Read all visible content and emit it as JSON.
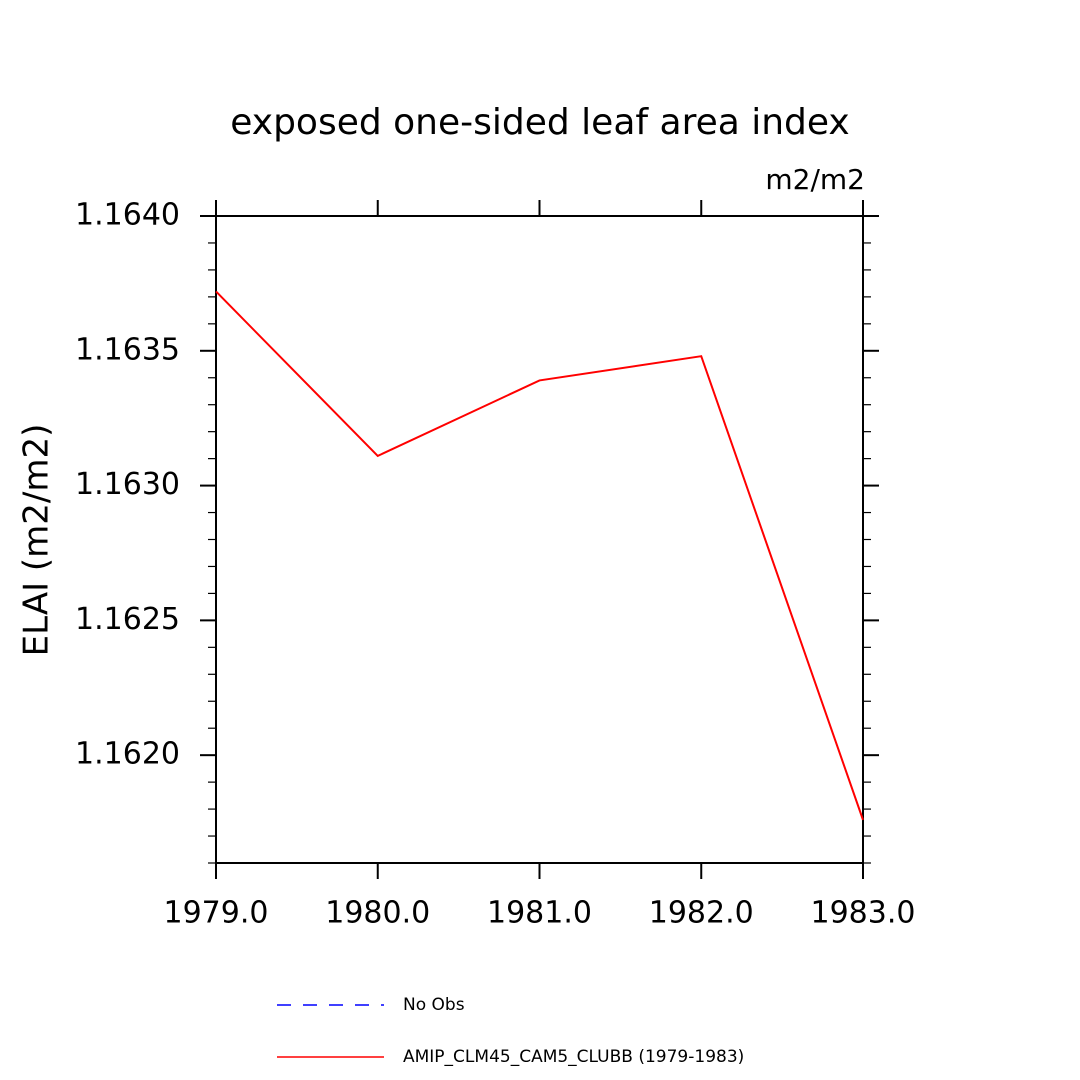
{
  "chart_data": {
    "type": "line",
    "title": "exposed one-sided leaf area index",
    "subtitle": "m2/m2",
    "y_label": "ELAI  (m2/m2)",
    "x": [
      1979,
      1980,
      1981,
      1982,
      1983
    ],
    "xlim": [
      1979,
      1983
    ],
    "xticks": [
      {
        "value": 1979,
        "label": "1979.0"
      },
      {
        "value": 1980,
        "label": "1980.0"
      },
      {
        "value": 1981,
        "label": "1981.0"
      },
      {
        "value": 1982,
        "label": "1982.0"
      },
      {
        "value": 1983,
        "label": "1983.0"
      }
    ],
    "ylim": [
      1.1616,
      1.164
    ],
    "yticks": [
      {
        "value": 1.162,
        "label": "1.1620"
      },
      {
        "value": 1.1625,
        "label": "1.1625"
      },
      {
        "value": 1.163,
        "label": "1.1630"
      },
      {
        "value": 1.1635,
        "label": "1.1635"
      },
      {
        "value": 1.164,
        "label": "1.1640"
      }
    ],
    "series": [
      {
        "name": "No Obs",
        "color": "#0000ff",
        "dashed": true,
        "values": [
          null,
          null,
          null,
          null,
          null
        ]
      },
      {
        "name": "AMIP_CLM45_CAM5_CLUBB (1979-1983)",
        "color": "#ff0000",
        "dashed": false,
        "values": [
          1.16372,
          1.16311,
          1.16339,
          1.16348,
          1.16176
        ]
      }
    ]
  }
}
